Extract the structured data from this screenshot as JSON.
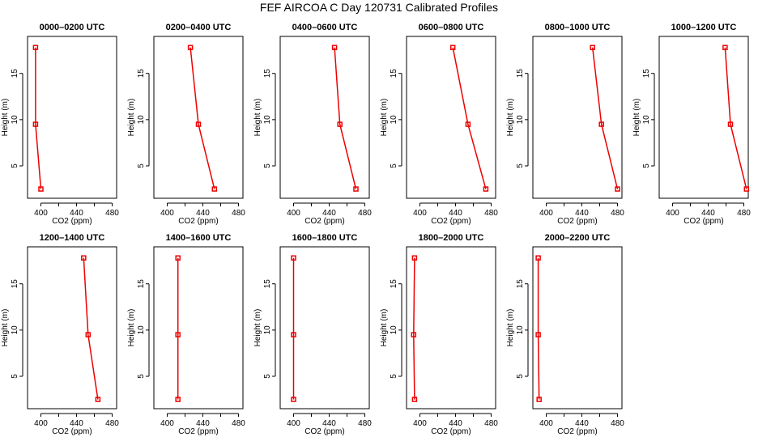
{
  "chart_data": {
    "type": "line",
    "title": "FEF AIRCOA C  Day 120731  Calibrated Profiles",
    "xlabel": "CO2 (ppm)",
    "ylabel": "Height (m)",
    "xlim": [
      385,
      485
    ],
    "ylim": [
      1.5,
      19
    ],
    "xticks": [
      400,
      440,
      480
    ],
    "yticks": [
      5,
      10,
      15
    ],
    "heights": [
      2.5,
      9.5,
      17.8
    ],
    "panels": [
      {
        "title": "0000–0200 UTC",
        "co2": [
          400,
          394,
          394
        ]
      },
      {
        "title": "0200–0400 UTC",
        "co2": [
          453,
          435,
          426
        ]
      },
      {
        "title": "0400–0600 UTC",
        "co2": [
          470,
          452,
          446
        ]
      },
      {
        "title": "0600–0800 UTC",
        "co2": [
          474,
          454,
          437
        ]
      },
      {
        "title": "0800–1000 UTC",
        "co2": [
          480,
          462,
          452
        ]
      },
      {
        "title": "1000–1200 UTC",
        "co2": [
          483,
          465,
          459
        ]
      },
      {
        "title": "1200–1400 UTC",
        "co2": [
          464,
          453,
          448
        ]
      },
      {
        "title": "1400–1600 UTC",
        "co2": [
          412,
          412,
          412
        ]
      },
      {
        "title": "1600–1800 UTC",
        "co2": [
          400,
          400,
          400
        ]
      },
      {
        "title": "1800–2000 UTC",
        "co2": [
          394,
          393,
          394
        ]
      },
      {
        "title": "2000–2200 UTC",
        "co2": [
          392,
          391,
          391
        ]
      }
    ]
  }
}
